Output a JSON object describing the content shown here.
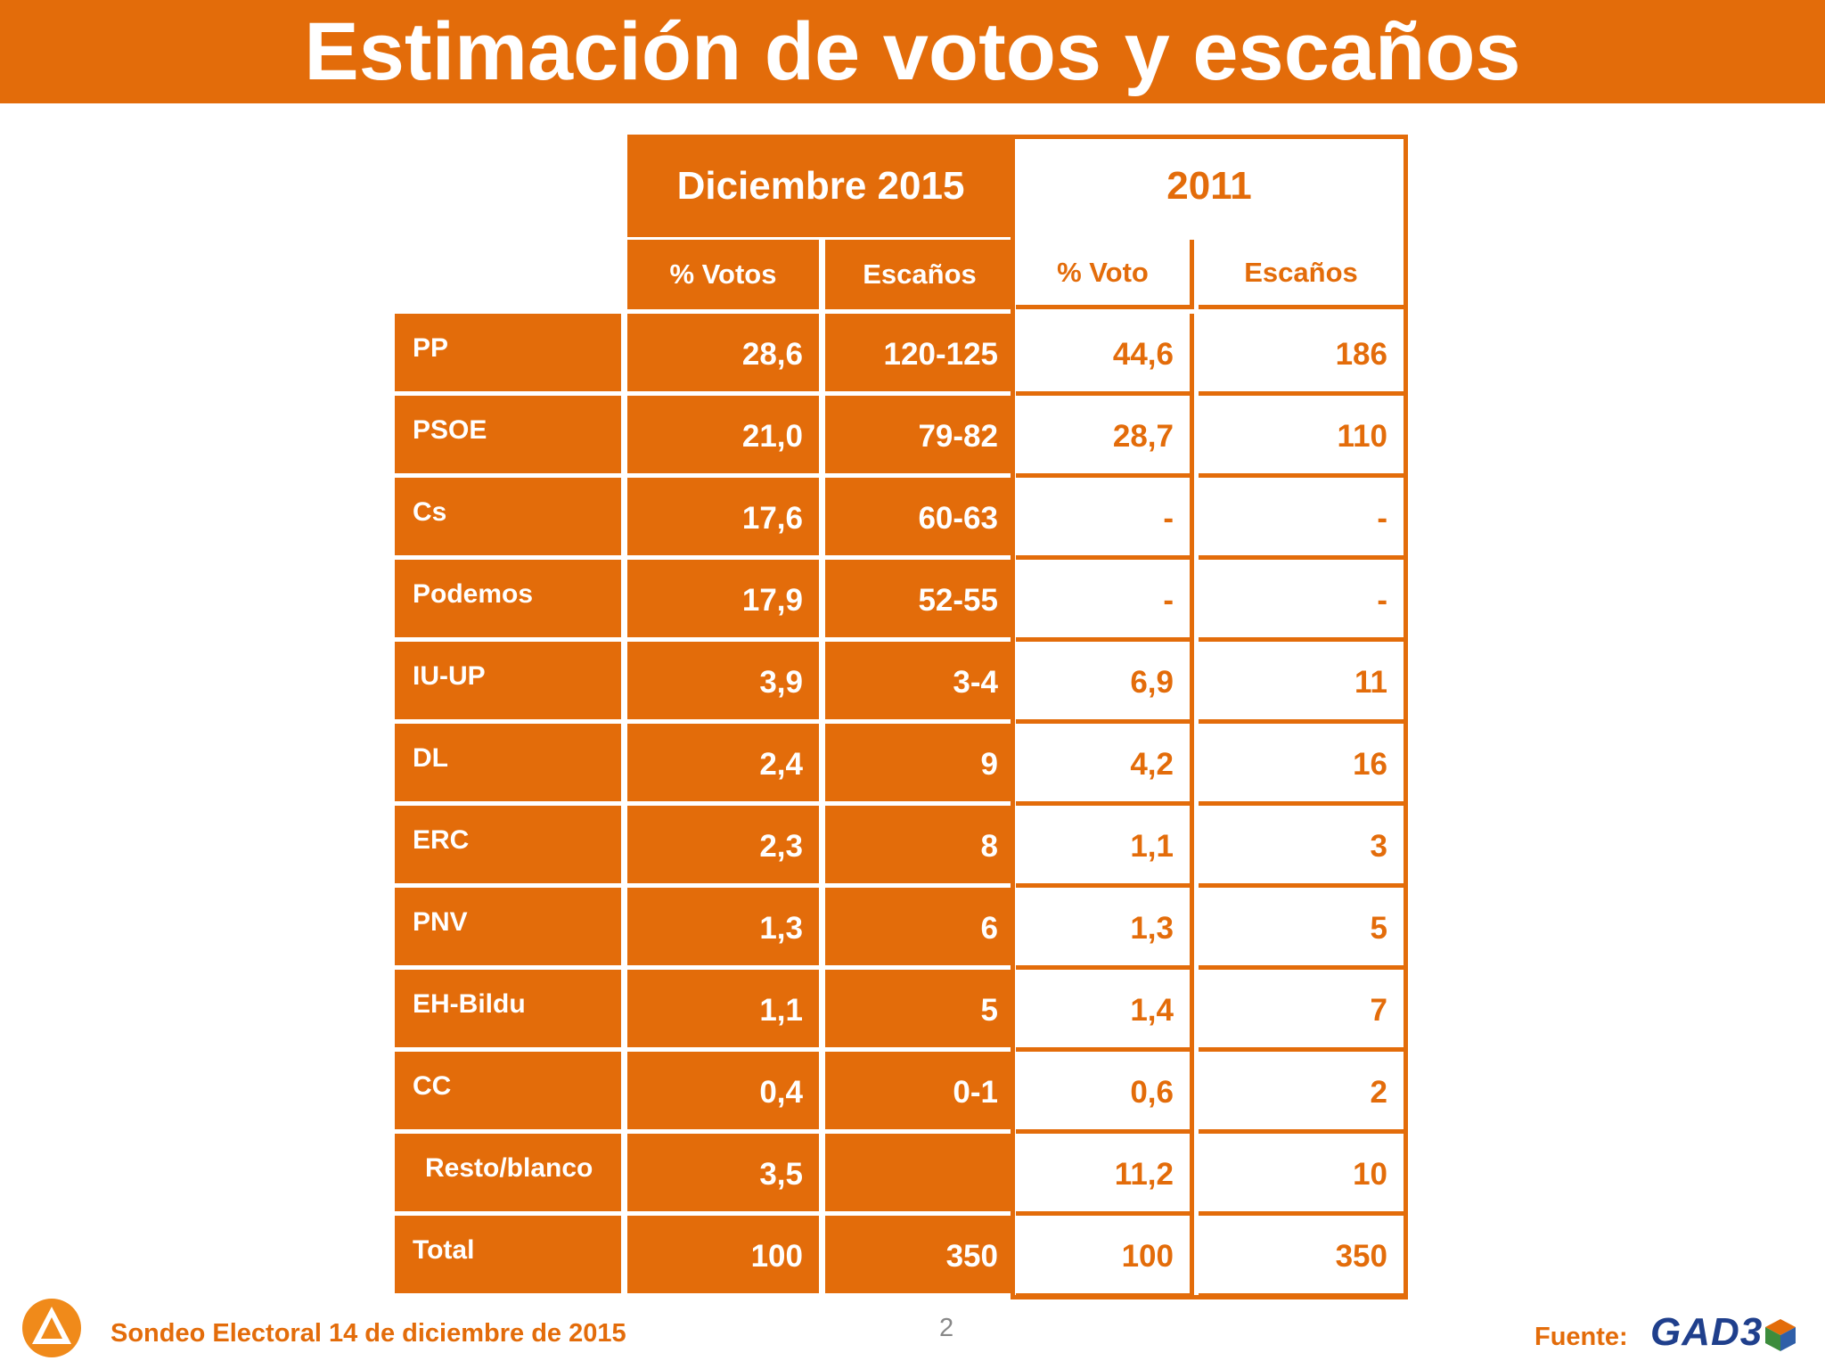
{
  "title": "Estimación de votos y escaños",
  "header": {
    "period_2015": "Diciembre 2015",
    "period_2011": "2011",
    "col_votes_2015": "% Votos",
    "col_seats_2015": "Escaños",
    "col_votes_2011": "% Voto",
    "col_seats_2011": "Escaños"
  },
  "rows": [
    {
      "party": "PP",
      "votes_2015": "28,6",
      "seats_2015": "120-125",
      "votes_2011": "44,6",
      "seats_2011": "186"
    },
    {
      "party": "PSOE",
      "votes_2015": "21,0",
      "seats_2015": "79-82",
      "votes_2011": "28,7",
      "seats_2011": "110"
    },
    {
      "party": "Cs",
      "votes_2015": "17,6",
      "seats_2015": "60-63",
      "votes_2011": "-",
      "seats_2011": "-"
    },
    {
      "party": "Podemos",
      "votes_2015": "17,9",
      "seats_2015": "52-55",
      "votes_2011": "-",
      "seats_2011": "-"
    },
    {
      "party": "IU-UP",
      "votes_2015": "3,9",
      "seats_2015": "3-4",
      "votes_2011": "6,9",
      "seats_2011": "11"
    },
    {
      "party": "DL",
      "votes_2015": "2,4",
      "seats_2015": "9",
      "votes_2011": "4,2",
      "seats_2011": "16"
    },
    {
      "party": "ERC",
      "votes_2015": "2,3",
      "seats_2015": "8",
      "votes_2011": "1,1",
      "seats_2011": "3"
    },
    {
      "party": "PNV",
      "votes_2015": "1,3",
      "seats_2015": "6",
      "votes_2011": "1,3",
      "seats_2011": "5"
    },
    {
      "party": "EH-Bildu",
      "votes_2015": "1,1",
      "seats_2015": "5",
      "votes_2011": "1,4",
      "seats_2011": "7"
    },
    {
      "party": "CC",
      "votes_2015": "0,4",
      "seats_2015": "0-1",
      "votes_2011": "0,6",
      "seats_2011": "2"
    },
    {
      "party": "Resto/blanco",
      "votes_2015": "3,5",
      "seats_2015": "",
      "votes_2011": "11,2",
      "seats_2011": "10"
    },
    {
      "party": "Total",
      "votes_2015": "100",
      "seats_2015": "350",
      "votes_2011": "100",
      "seats_2011": "350"
    }
  ],
  "footer": {
    "survey": "Sondeo Electoral 14 de diciembre de 2015",
    "page": "2",
    "source_label": "Fuente:",
    "source_logo": "GAD3"
  },
  "colors": {
    "accent": "#e36c0a",
    "logo_blue": "#1f3f8c"
  }
}
